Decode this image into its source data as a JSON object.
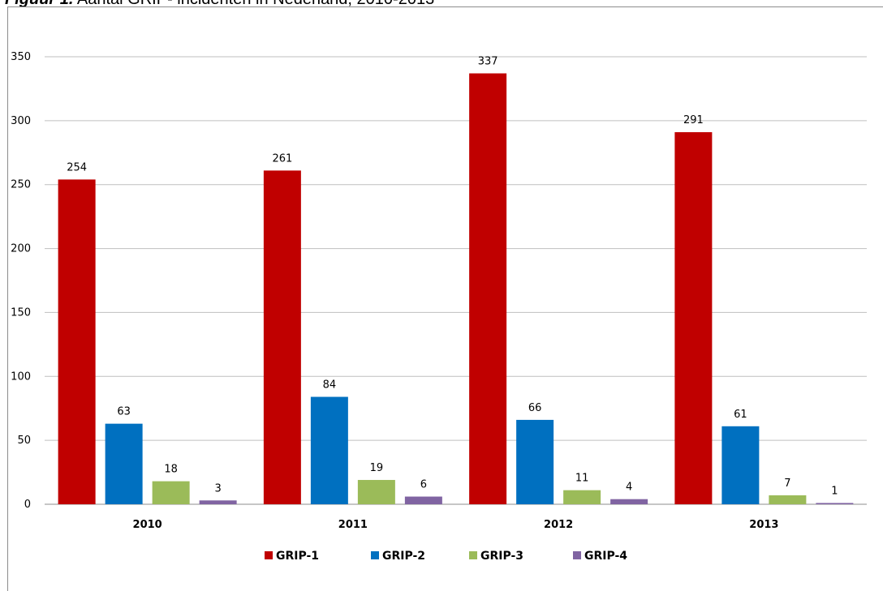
{
  "caption": {
    "lead": "Figuur 1.",
    "text": "Aantal GRIP- incidenten in Nederland, 2010-2013"
  },
  "chart_data": {
    "type": "bar",
    "title": "",
    "xlabel": "",
    "ylabel": "",
    "categories": [
      "2010",
      "2011",
      "2012",
      "2013"
    ],
    "ylim": [
      0,
      350
    ],
    "yticks": [
      0,
      50,
      100,
      150,
      200,
      250,
      300,
      350
    ],
    "grid": true,
    "legend_position": "bottom",
    "data_labels": true,
    "series": [
      {
        "name": "GRIP-1",
        "color": "#c00000",
        "values": [
          254,
          261,
          337,
          291
        ]
      },
      {
        "name": "GRIP-2",
        "color": "#0070c0",
        "values": [
          63,
          84,
          66,
          61
        ]
      },
      {
        "name": "GRIP-3",
        "color": "#9bbb59",
        "values": [
          18,
          19,
          11,
          7
        ]
      },
      {
        "name": "GRIP-4",
        "color": "#8064a2",
        "values": [
          3,
          6,
          4,
          1
        ]
      }
    ]
  }
}
